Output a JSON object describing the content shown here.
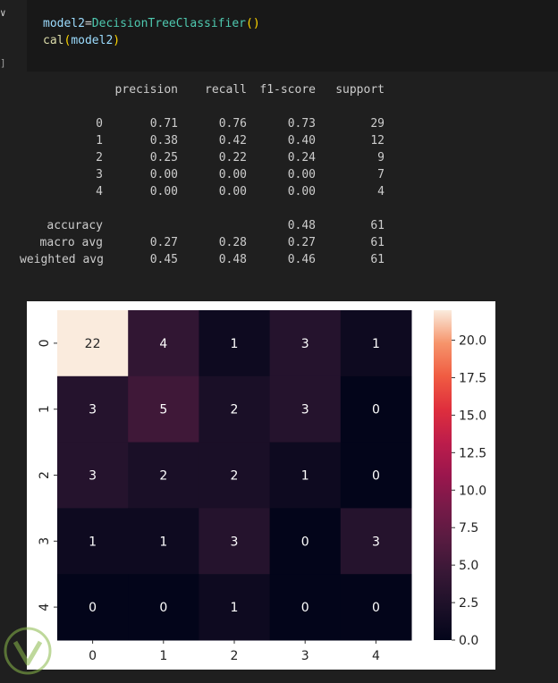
{
  "code": {
    "line1": {
      "var": "model2",
      "op": "=",
      "cls": "DecisionTreeClassifier",
      "open": "(",
      "close": ")"
    },
    "line2": {
      "fn": "cal",
      "open": "(",
      "arg": "model2",
      "close": ")"
    }
  },
  "report": {
    "headers": [
      "precision",
      "recall",
      "f1-score",
      "support"
    ],
    "rows": [
      {
        "label": "0",
        "precision": "0.71",
        "recall": "0.76",
        "f1": "0.73",
        "support": "29"
      },
      {
        "label": "1",
        "precision": "0.38",
        "recall": "0.42",
        "f1": "0.40",
        "support": "12"
      },
      {
        "label": "2",
        "precision": "0.25",
        "recall": "0.22",
        "f1": "0.24",
        "support": "9"
      },
      {
        "label": "3",
        "precision": "0.00",
        "recall": "0.00",
        "f1": "0.00",
        "support": "7"
      },
      {
        "label": "4",
        "precision": "0.00",
        "recall": "0.00",
        "f1": "0.00",
        "support": "4"
      }
    ],
    "summary": [
      {
        "label": "accuracy",
        "precision": "",
        "recall": "",
        "f1": "0.48",
        "support": "61"
      },
      {
        "label": "macro avg",
        "precision": "0.27",
        "recall": "0.28",
        "f1": "0.27",
        "support": "61"
      },
      {
        "label": "weighted avg",
        "precision": "0.45",
        "recall": "0.48",
        "f1": "0.46",
        "support": "61"
      }
    ]
  },
  "chart_data": {
    "type": "heatmap",
    "x_labels": [
      "0",
      "1",
      "2",
      "3",
      "4"
    ],
    "y_labels": [
      "0",
      "1",
      "2",
      "3",
      "4"
    ],
    "values": [
      [
        22,
        4,
        1,
        3,
        1
      ],
      [
        3,
        5,
        2,
        3,
        0
      ],
      [
        3,
        2,
        2,
        1,
        0
      ],
      [
        1,
        1,
        3,
        0,
        3
      ],
      [
        0,
        0,
        1,
        0,
        0
      ]
    ],
    "colorbar": {
      "min": 0,
      "max": 22,
      "ticks": [
        "0.0",
        "2.5",
        "5.0",
        "7.5",
        "10.0",
        "12.5",
        "15.0",
        "17.5",
        "20.0"
      ]
    },
    "colormap": "rocket"
  }
}
